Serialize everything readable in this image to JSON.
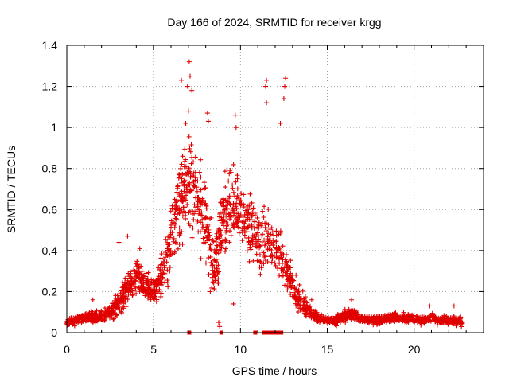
{
  "chart_data": {
    "type": "scatter",
    "title": "Day 166 of 2024, SRMTID for receiver krgg",
    "xlabel": "GPS time / hours",
    "ylabel": "SRMTID / TECUs",
    "xlim": [
      0,
      24
    ],
    "ylim": [
      0,
      1.4
    ],
    "xticks": [
      "0",
      "5",
      "10",
      "15",
      "20"
    ],
    "yticks": [
      "0",
      "0.2",
      "0.4",
      "0.6",
      "0.8",
      "1",
      "1.2",
      "1.4"
    ],
    "grid": true,
    "marker": "+",
    "color": "#e00000",
    "envelope": {
      "x": [
        0,
        0.5,
        1,
        1.5,
        2,
        2.5,
        3,
        3.5,
        4,
        4.5,
        5,
        5.5,
        6,
        6.5,
        7,
        7.5,
        8,
        8.5,
        9,
        9.5,
        10,
        10.5,
        11,
        11.5,
        12,
        12.5,
        13,
        13.5,
        14,
        14.5,
        15,
        15.5,
        16,
        16.5,
        17,
        17.5,
        18,
        18.5,
        19,
        19.5,
        20,
        20.5,
        21,
        21.5,
        22,
        22.5,
        22.8
      ],
      "center": [
        0.05,
        0.06,
        0.07,
        0.08,
        0.08,
        0.1,
        0.14,
        0.22,
        0.27,
        0.24,
        0.2,
        0.28,
        0.45,
        0.62,
        0.75,
        0.65,
        0.55,
        0.3,
        0.55,
        0.65,
        0.6,
        0.52,
        0.45,
        0.45,
        0.42,
        0.35,
        0.22,
        0.15,
        0.1,
        0.07,
        0.06,
        0.06,
        0.08,
        0.09,
        0.07,
        0.06,
        0.06,
        0.07,
        0.07,
        0.07,
        0.07,
        0.06,
        0.07,
        0.06,
        0.06,
        0.06,
        0.05
      ],
      "spread": [
        0.02,
        0.03,
        0.03,
        0.04,
        0.04,
        0.05,
        0.1,
        0.12,
        0.12,
        0.1,
        0.08,
        0.15,
        0.25,
        0.3,
        0.35,
        0.3,
        0.3,
        0.25,
        0.3,
        0.3,
        0.25,
        0.2,
        0.2,
        0.2,
        0.2,
        0.15,
        0.1,
        0.08,
        0.05,
        0.03,
        0.02,
        0.03,
        0.04,
        0.04,
        0.03,
        0.03,
        0.03,
        0.03,
        0.03,
        0.03,
        0.03,
        0.03,
        0.03,
        0.03,
        0.03,
        0.03,
        0.03
      ]
    },
    "peaks": [
      {
        "x": 7.05,
        "y": 1.32
      },
      {
        "x": 7.1,
        "y": 1.25
      },
      {
        "x": 6.95,
        "y": 1.2
      },
      {
        "x": 6.6,
        "y": 1.23
      },
      {
        "x": 7.2,
        "y": 1.18
      },
      {
        "x": 12.6,
        "y": 1.24
      },
      {
        "x": 12.55,
        "y": 1.2
      },
      {
        "x": 11.5,
        "y": 1.23
      },
      {
        "x": 11.45,
        "y": 1.2
      },
      {
        "x": 11.5,
        "y": 1.12
      },
      {
        "x": 9.7,
        "y": 1.06
      },
      {
        "x": 9.75,
        "y": 1.0
      },
      {
        "x": 8.1,
        "y": 1.07
      },
      {
        "x": 8.15,
        "y": 1.03
      },
      {
        "x": 12.5,
        "y": 1.14
      },
      {
        "x": 12.3,
        "y": 1.02
      },
      {
        "x": 7.0,
        "y": 1.08
      },
      {
        "x": 6.85,
        "y": 1.02
      },
      {
        "x": 3.0,
        "y": 0.44
      },
      {
        "x": 3.5,
        "y": 0.47
      },
      {
        "x": 4.2,
        "y": 0.41
      },
      {
        "x": 1.5,
        "y": 0.16
      },
      {
        "x": 16.4,
        "y": 0.16
      },
      {
        "x": 20.9,
        "y": 0.13
      },
      {
        "x": 22.3,
        "y": 0.13
      },
      {
        "x": 8.75,
        "y": 0.05
      },
      {
        "x": 8.8,
        "y": 0.03
      },
      {
        "x": 9.6,
        "y": 0.14
      },
      {
        "x": 14.1,
        "y": 0.16
      },
      {
        "x": 13.2,
        "y": 0.28
      }
    ],
    "zero_markers_x": [
      7.05,
      8.9,
      10.85,
      11.35,
      11.55,
      11.75,
      11.95,
      12.15,
      12.35
    ]
  }
}
